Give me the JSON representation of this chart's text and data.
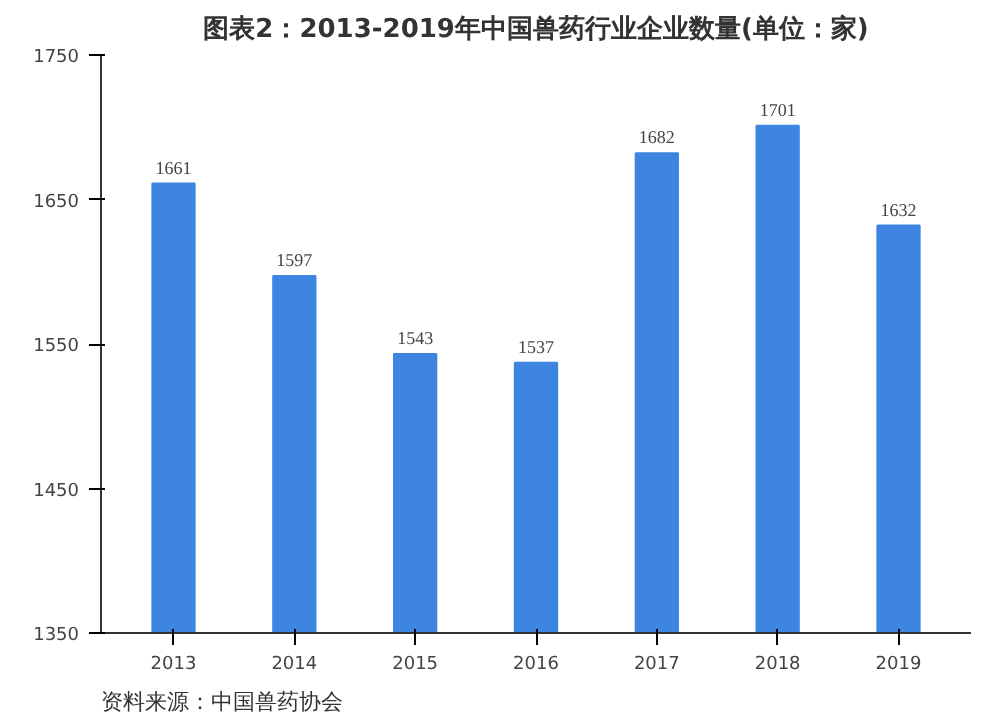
{
  "chart_data": {
    "type": "bar",
    "title": "图表2：2013-2019年中国兽药行业企业数量(单位：家)",
    "categories": [
      "2013",
      "2014",
      "2015",
      "2016",
      "2017",
      "2018",
      "2019"
    ],
    "values": [
      1661,
      1597,
      1543,
      1537,
      1682,
      1701,
      1632
    ],
    "color": "#3d85e0",
    "data_labels": true,
    "ylim": [
      1350,
      1750
    ],
    "yticks": [
      1350,
      1450,
      1550,
      1650,
      1750
    ],
    "grid": false,
    "annotations": [
      "资料来源：中国兽药协会"
    ]
  }
}
